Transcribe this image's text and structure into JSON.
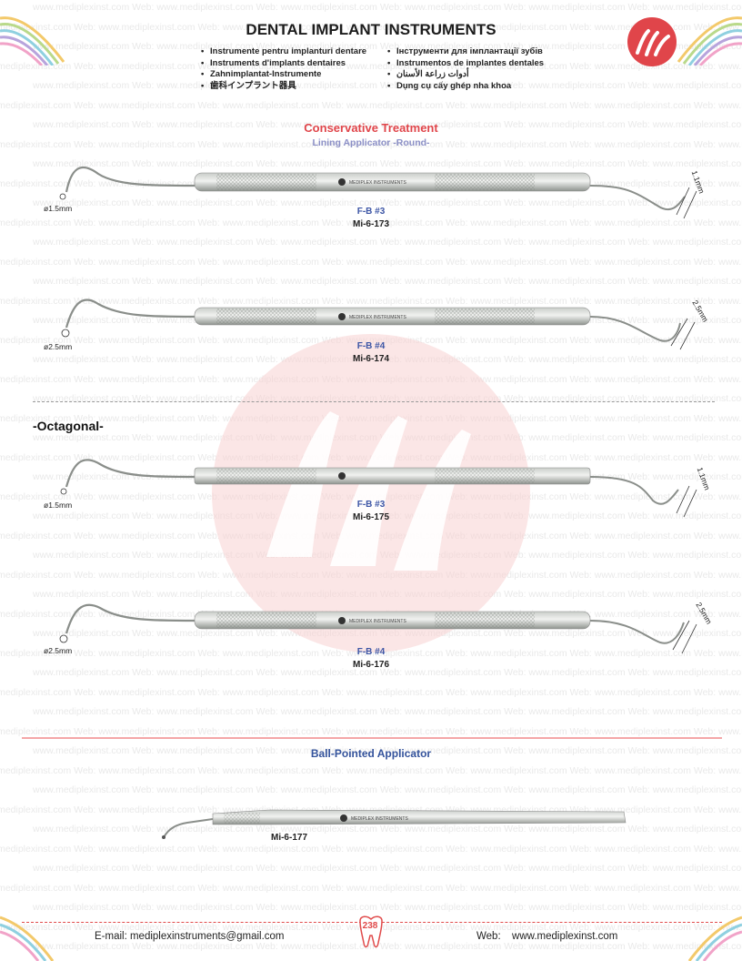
{
  "header": {
    "title": "DENTAL IMPLANT INSTRUMENTS",
    "languages_left": [
      "Instrumente pentru implanturi dentare",
      "Instruments d'implants dentaires",
      "Zahnimplantat-Instrumente",
      "歯科インプラント器具"
    ],
    "languages_right": [
      "Інструменти для імплантації зубів",
      "Instrumentos de implantes dentales",
      "أدوات زراعة الأسنان",
      "Dụng cụ cấy ghép nha khoa"
    ],
    "logo_text": "M"
  },
  "watermark": {
    "text": "www.mediplexinst.com",
    "prefix": "Web:"
  },
  "sections": {
    "conservative": "Conservative Treatment",
    "lining": "Lining Applicator -Round-",
    "octagonal": "-Octagonal-",
    "ball": "Ball-Pointed Applicator"
  },
  "instruments": [
    {
      "fb": "F-B #3",
      "code": "Mi-6-173",
      "tip_left": "ø1.5mm",
      "tip_right": "1.1mm",
      "brand": "MEDIPLEX INSTRUMENTS"
    },
    {
      "fb": "F-B #4",
      "code": "Mi-6-174",
      "tip_left": "ø2.5mm",
      "tip_right": "2.5mm",
      "brand": "MEDIPLEX INSTRUMENTS"
    },
    {
      "fb": "F-B #3",
      "code": "Mi-6-175",
      "tip_left": "ø1.5mm",
      "tip_right": "1.1mm",
      "brand": "MEDIPLEX INSTRUMENTS"
    },
    {
      "fb": "F-B #4",
      "code": "Mi-6-176",
      "tip_left": "ø2.5mm",
      "tip_right": "2.5mm",
      "brand": "MEDIPLEX INSTRUMENTS"
    }
  ],
  "ball_instrument": {
    "code": "Mi-6-177",
    "brand": "MEDIPLEX INSTRUMENTS"
  },
  "footer": {
    "email": "E-mail: mediplexinstruments@gmail.com",
    "web_label": "Web:",
    "web": "www.mediplexinst.com",
    "page_number": "238"
  },
  "colors": {
    "accent_red": "#e0454a",
    "accent_blue": "#3c55a5",
    "lavender": "#8b8fc6"
  }
}
